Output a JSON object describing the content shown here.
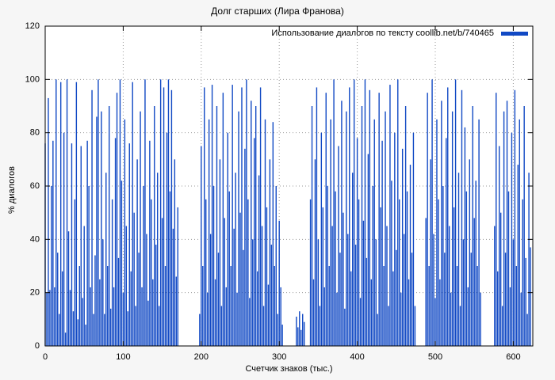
{
  "title": "Долг старших (Лира Франова)",
  "legend": {
    "label": "Использование диалогов по тексту coollib.net/b/740465"
  },
  "colors": {
    "bar": "#1149c4",
    "background": "#f6f6f6",
    "plot_background": "#ffffff",
    "grid": "#9a9a9a",
    "frame": "#000000"
  },
  "chart_data": {
    "type": "bar",
    "title": "Долг старших (Лира Франова)",
    "xlabel": "Счетчик знаков (тыс.)",
    "ylabel": "% диалогов",
    "xlim": [
      0,
      625
    ],
    "ylim": [
      0,
      120
    ],
    "xticks": [
      0,
      100,
      200,
      300,
      400,
      500,
      600
    ],
    "yticks": [
      0,
      20,
      40,
      60,
      80,
      100,
      120
    ],
    "grid": true,
    "legend_position": "top-right",
    "legend_label": "Использование диалогов по тексту coollib.net/b/740465",
    "x_step": 2,
    "values": [
      76,
      20,
      93,
      21,
      60,
      77,
      22,
      100,
      35,
      12,
      99,
      28,
      80,
      5,
      100,
      43,
      21,
      76,
      13,
      55,
      99,
      10,
      30,
      75,
      18,
      45,
      8,
      77,
      60,
      22,
      96,
      12,
      34,
      86,
      100,
      25,
      88,
      40,
      12,
      65,
      30,
      90,
      14,
      55,
      22,
      78,
      95,
      33,
      100,
      62,
      20,
      85,
      45,
      13,
      76,
      28,
      99,
      50,
      15,
      70,
      35,
      88,
      22,
      60,
      100,
      42,
      17,
      77,
      55,
      25,
      90,
      38,
      65,
      15,
      100,
      48,
      97,
      30,
      80,
      100,
      58,
      96,
      44,
      70,
      26,
      52,
      0,
      0,
      0,
      0,
      0,
      0,
      0,
      0,
      0,
      0,
      0,
      0,
      0,
      12,
      75,
      30,
      97,
      55,
      20,
      85,
      42,
      98,
      60,
      25,
      90,
      35,
      70,
      15,
      95,
      48,
      22,
      80,
      58,
      30,
      98,
      44,
      65,
      20,
      88,
      50,
      97,
      36,
      74,
      100,
      55,
      18,
      92,
      40,
      78,
      90,
      28,
      64,
      97,
      45,
      15,
      85,
      52,
      23,
      70,
      38,
      84,
      30,
      60,
      12,
      47,
      22,
      8,
      0,
      0,
      0,
      0,
      0,
      0,
      0,
      0,
      11,
      7,
      13,
      6,
      12,
      9,
      0,
      0,
      0,
      55,
      90,
      25,
      70,
      97,
      40,
      15,
      80,
      52,
      22,
      95,
      60,
      30,
      85,
      45,
      100,
      58,
      20,
      75,
      35,
      92,
      50,
      14,
      88,
      42,
      97,
      28,
      65,
      100,
      38,
      78,
      55,
      18,
      90,
      47,
      100,
      33,
      72,
      96,
      25,
      60,
      85,
      40,
      12,
      95,
      52,
      77,
      30,
      88,
      45,
      15,
      98,
      62,
      28,
      80,
      36,
      100,
      55,
      20,
      74,
      42,
      90,
      58,
      25,
      68,
      35,
      80,
      15,
      0,
      0,
      0,
      0,
      0,
      0,
      48,
      95,
      30,
      70,
      100,
      42,
      18,
      85,
      55,
      25,
      92,
      60,
      35,
      78,
      97,
      45,
      20,
      88,
      52,
      100,
      30,
      65,
      15,
      96,
      40,
      82,
      58,
      22,
      70,
      35,
      90,
      48,
      62,
      30,
      85,
      20,
      0,
      0,
      0,
      0,
      0,
      0,
      0,
      0,
      45,
      95,
      28,
      75,
      50,
      15,
      88,
      35,
      92,
      58,
      22,
      80,
      40,
      96,
      30,
      68,
      85,
      20,
      55,
      90,
      33,
      12,
      65,
      37
    ]
  }
}
